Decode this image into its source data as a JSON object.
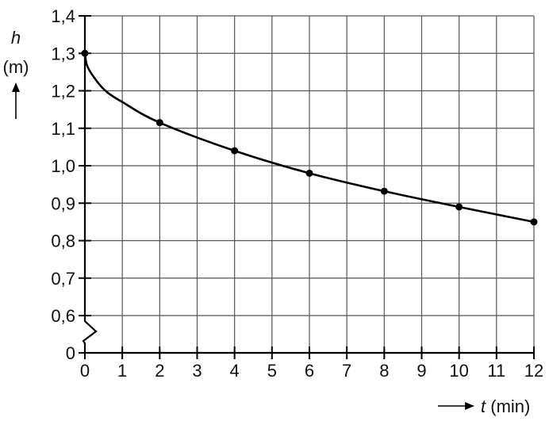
{
  "chart_data": {
    "type": "line",
    "title": "",
    "xlabel": "t (min)",
    "ylabel_var": "h",
    "ylabel_unit": "(m)",
    "xlim": [
      0,
      12
    ],
    "ylim": [
      0.6,
      1.4
    ],
    "y_axis_break": true,
    "grid": true,
    "x_ticks": [
      "0",
      "1",
      "2",
      "3",
      "4",
      "5",
      "6",
      "7",
      "8",
      "9",
      "10",
      "11",
      "12"
    ],
    "y_ticks": [
      "0",
      "0,6",
      "0,7",
      "0,8",
      "0,9",
      "1,0",
      "1,1",
      "1,2",
      "1,3",
      "1,4"
    ],
    "points": [
      {
        "t": 0,
        "h": 1.3
      },
      {
        "t": 2,
        "h": 1.115
      },
      {
        "t": 4,
        "h": 1.04
      },
      {
        "t": 6,
        "h": 0.98
      },
      {
        "t": 8,
        "h": 0.932
      },
      {
        "t": 10,
        "h": 0.89
      },
      {
        "t": 12,
        "h": 0.85
      }
    ],
    "curve": [
      {
        "t": 0,
        "h": 1.3
      },
      {
        "t": 0.06,
        "h": 1.267
      },
      {
        "t": 0.25,
        "h": 1.235
      },
      {
        "t": 0.55,
        "h": 1.2
      },
      {
        "t": 1,
        "h": 1.17
      },
      {
        "t": 2,
        "h": 1.115
      },
      {
        "t": 4,
        "h": 1.04
      },
      {
        "t": 6,
        "h": 0.98
      },
      {
        "t": 8,
        "h": 0.932
      },
      {
        "t": 10,
        "h": 0.89
      },
      {
        "t": 12,
        "h": 0.85
      }
    ],
    "colors": {
      "line": "#000000",
      "grid": "#555555"
    }
  }
}
